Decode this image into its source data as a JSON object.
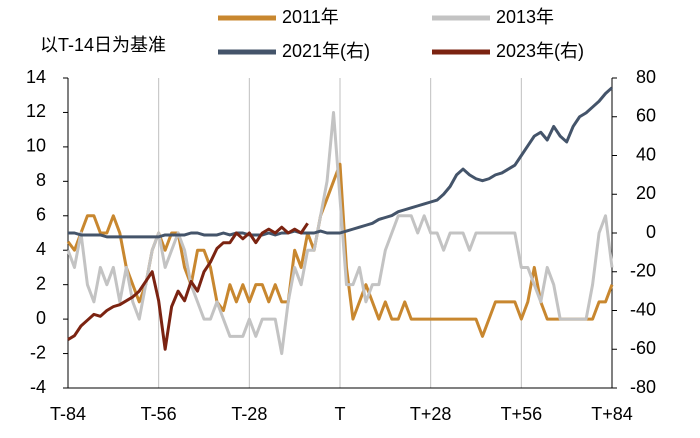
{
  "chart_data": {
    "type": "line",
    "ylabel": "以T-14日为基准",
    "x": [
      -84,
      -82,
      -80,
      -78,
      -76,
      -74,
      -72,
      -70,
      -68,
      -66,
      -64,
      -62,
      -60,
      -58,
      -56,
      -54,
      -52,
      -50,
      -48,
      -46,
      -44,
      -42,
      -40,
      -38,
      -36,
      -34,
      -32,
      -30,
      -28,
      -26,
      -24,
      -22,
      -20,
      -18,
      -16,
      -14,
      -12,
      -10,
      -8,
      -6,
      -4,
      -2,
      0,
      2,
      4,
      6,
      8,
      10,
      12,
      14,
      16,
      18,
      20,
      22,
      24,
      26,
      28,
      30,
      32,
      34,
      36,
      38,
      40,
      42,
      44,
      46,
      48,
      50,
      52,
      54,
      56,
      58,
      60,
      62,
      64,
      66,
      68,
      70,
      72,
      74,
      76,
      78,
      80,
      82,
      84
    ],
    "series": [
      {
        "name": "2011年",
        "color": "#c8872f",
        "axis": "y",
        "values": [
          4.5,
          4,
          5,
          6,
          6,
          5,
          5,
          6,
          5,
          3,
          2,
          1,
          2,
          4,
          5,
          4,
          5,
          5,
          3,
          2,
          4,
          4,
          3,
          1,
          0.5,
          2,
          1,
          2,
          1,
          2,
          2,
          1,
          2,
          1,
          1,
          4,
          3,
          5,
          4,
          6,
          7,
          8,
          9,
          3,
          0,
          1,
          2,
          1,
          0,
          1,
          0,
          0,
          1,
          0,
          0,
          0,
          0,
          0,
          0,
          0,
          0,
          0,
          0,
          0,
          -1,
          0,
          1,
          1,
          1,
          1,
          0,
          1,
          3,
          1,
          0,
          0,
          0,
          0,
          0,
          0,
          0,
          0,
          1,
          1,
          2
        ]
      },
      {
        "name": "2013年",
        "color": "#c3c3c3",
        "axis": "y",
        "values": [
          4,
          3,
          5,
          2,
          1,
          3,
          2,
          3,
          1,
          3,
          1,
          0,
          2,
          4,
          5,
          3,
          4,
          5,
          4,
          2,
          1,
          0,
          0,
          1,
          0,
          -1,
          -1,
          -1,
          0,
          -1,
          0,
          0,
          0,
          -2,
          1,
          3,
          2,
          4,
          4,
          6,
          8,
          12,
          7,
          2,
          2,
          3,
          1,
          2,
          2,
          4,
          5,
          6,
          6,
          6,
          5,
          6,
          5,
          5,
          4,
          5,
          5,
          5,
          4,
          5,
          5,
          5,
          5,
          5,
          5,
          5,
          3,
          3,
          2,
          1,
          3,
          2,
          0,
          0,
          0,
          0,
          0,
          2,
          5,
          6,
          3
        ]
      },
      {
        "name": "2021年(右)",
        "color": "#44546a",
        "axis": "y2",
        "values": [
          0,
          0,
          -1,
          -1,
          -1,
          -1,
          -2,
          -2,
          -2,
          -2,
          -2,
          -2,
          -2,
          -2,
          -2,
          -1,
          -1,
          -1,
          -1,
          0,
          0,
          -1,
          -1,
          -1,
          0,
          -1,
          0,
          0,
          -1,
          -1,
          -1,
          0,
          -1,
          0,
          0,
          1,
          0,
          0,
          0,
          1,
          0,
          0,
          0,
          1,
          2,
          3,
          4,
          5,
          7,
          8,
          9,
          11,
          12,
          13,
          14,
          15,
          16,
          17,
          20,
          24,
          30,
          33,
          30,
          28,
          27,
          28,
          30,
          31,
          33,
          35,
          40,
          45,
          50,
          52,
          48,
          55,
          50,
          47,
          55,
          60,
          62,
          65,
          68,
          72,
          75
        ]
      },
      {
        "name": "2023年(右)",
        "color": "#7b2311",
        "axis": "y2",
        "values": [
          -55,
          -53,
          -48,
          -45,
          -42,
          -43,
          -40,
          -38,
          -37,
          -35,
          -33,
          -30,
          -25,
          -20,
          -35,
          -60,
          -38,
          -30,
          -35,
          -25,
          -30,
          -20,
          -15,
          -8,
          -5,
          -5,
          0,
          -3,
          0,
          -5,
          0,
          2,
          0,
          3,
          0,
          2,
          0,
          5,
          null,
          null,
          null,
          null,
          null,
          null,
          null,
          null,
          null,
          null,
          null,
          null,
          null,
          null,
          null,
          null,
          null,
          null,
          null,
          null,
          null,
          null,
          null,
          null,
          null,
          null,
          null,
          null,
          null,
          null,
          null,
          null,
          null,
          null,
          null,
          null,
          null,
          null,
          null,
          null,
          null,
          null,
          null,
          null,
          null,
          null,
          null
        ]
      }
    ],
    "xlim": [
      -84,
      84
    ],
    "xticks": [
      {
        "value": -84,
        "label": "T-84"
      },
      {
        "value": -56,
        "label": "T-56"
      },
      {
        "value": -28,
        "label": "T-28"
      },
      {
        "value": 0,
        "label": "T"
      },
      {
        "value": 28,
        "label": "T+28"
      },
      {
        "value": 56,
        "label": "T+56"
      },
      {
        "value": 84,
        "label": "T+84"
      }
    ],
    "ylim": [
      -4,
      14
    ],
    "yticks": [
      -4,
      -2,
      0,
      2,
      4,
      6,
      8,
      10,
      12,
      14
    ],
    "y2lim": [
      -80,
      80
    ],
    "y2ticks": [
      -80,
      -60,
      -40,
      -20,
      0,
      20,
      40,
      60,
      80
    ],
    "grid": true
  }
}
